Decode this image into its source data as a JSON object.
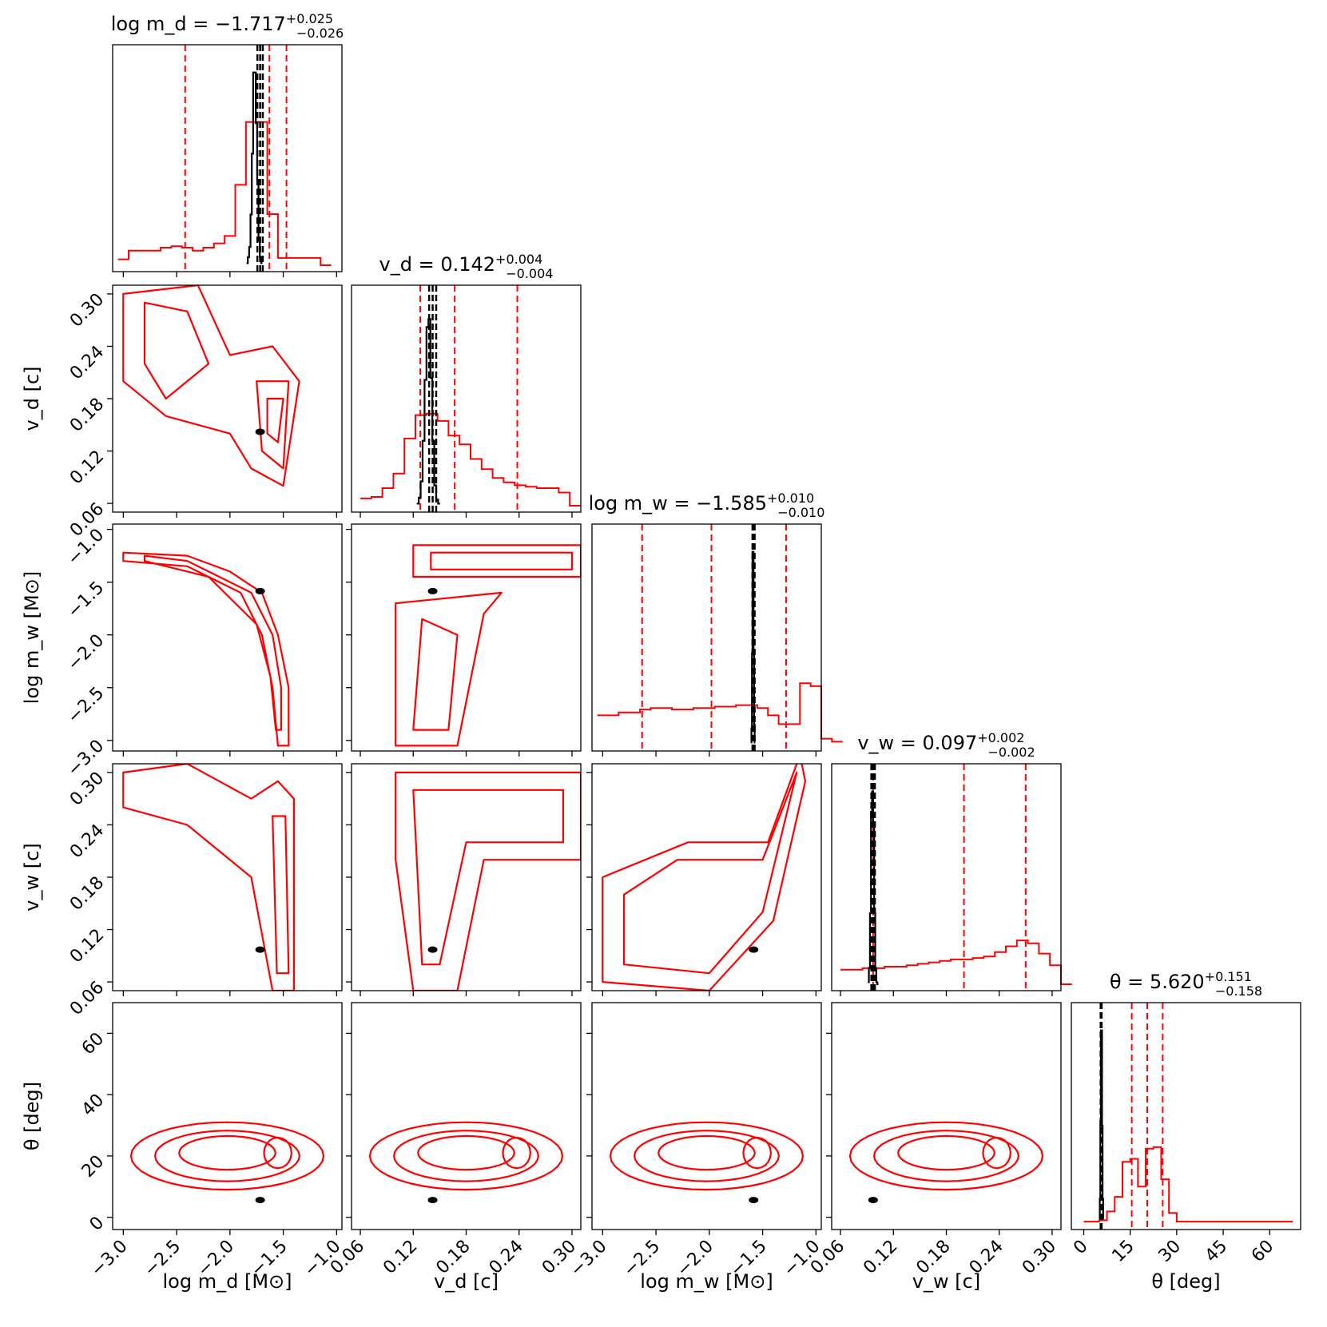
{
  "chart_data": {
    "type": "corner",
    "parameters": [
      {
        "key": "log_md",
        "label": "log m_d [M⊙]",
        "ticks": [
          "−3.0",
          "−2.5",
          "−2.0",
          "−1.5",
          "−1.0"
        ],
        "tick_values": [
          -3.0,
          -2.5,
          -2.0,
          -1.5,
          -1.0
        ],
        "range": [
          -3.1,
          -0.95
        ]
      },
      {
        "key": "vd",
        "label": "v_d [c]",
        "ticks": [
          "0.06",
          "0.12",
          "0.18",
          "0.24",
          "0.30"
        ],
        "tick_values": [
          0.06,
          0.12,
          0.18,
          0.24,
          0.3
        ],
        "range": [
          0.05,
          0.31
        ]
      },
      {
        "key": "log_mw",
        "label": "log m_w [M⊙]",
        "ticks": [
          "−3.0",
          "−2.5",
          "−2.0",
          "−1.5",
          "−1.0"
        ],
        "tick_values": [
          -3.0,
          -2.5,
          -2.0,
          -1.5,
          -1.0
        ],
        "range": [
          -3.1,
          -0.95
        ]
      },
      {
        "key": "vw",
        "label": "v_w [c]",
        "ticks": [
          "0.06",
          "0.12",
          "0.18",
          "0.24",
          "0.30"
        ],
        "tick_values": [
          0.06,
          0.12,
          0.18,
          0.24,
          0.3
        ],
        "range": [
          0.05,
          0.31
        ]
      },
      {
        "key": "theta",
        "label": "θ [deg]",
        "ticks": [
          "0",
          "20",
          "40",
          "60"
        ],
        "bottom_ticks": [
          "0",
          "15",
          "30",
          "45",
          "60"
        ],
        "tick_values": [
          0,
          20,
          40,
          60
        ],
        "bottom_tick_values": [
          0,
          15,
          30,
          45,
          60
        ],
        "range": [
          -4,
          70
        ]
      }
    ],
    "titles": [
      {
        "label": "log m_d",
        "value": "−1.717",
        "plus": "+0.025",
        "minus": "−0.026"
      },
      {
        "label": "v_d",
        "value": "0.142",
        "plus": "+0.004",
        "minus": "−0.004"
      },
      {
        "label": "log m_w",
        "value": "−1.585",
        "plus": "+0.010",
        "minus": "−0.010"
      },
      {
        "label": "v_w",
        "value": "0.097",
        "plus": "+0.002",
        "minus": "−0.002"
      },
      {
        "label": "θ",
        "value": "5.620",
        "plus": "+0.151",
        "minus": "−0.158"
      }
    ],
    "series": [
      {
        "color": "#ff0000",
        "role": "broad posterior"
      },
      {
        "color": "#000000",
        "role": "narrow posterior"
      }
    ],
    "red_quantiles": {
      "log_md": [
        -2.42,
        -1.63,
        -1.47
      ],
      "vd": [
        0.128,
        0.167,
        0.238
      ],
      "log_mw": [
        -2.63,
        -1.98,
        -1.28
      ],
      "vw": [
        0.097,
        0.2,
        0.27
      ],
      "theta": [
        15.5,
        20.5,
        25.5
      ]
    },
    "black_quantiles": {
      "log_md": [
        -1.743,
        -1.717,
        -1.692
      ],
      "vd": [
        0.138,
        0.142,
        0.146
      ],
      "log_mw": [
        -1.595,
        -1.585,
        -1.575
      ],
      "vw": [
        0.095,
        0.097,
        0.099
      ],
      "theta": [
        5.46,
        5.62,
        5.77
      ]
    },
    "red_hist": {
      "log_md": {
        "start": -3.05,
        "width": 0.1,
        "counts": [
          0.04,
          0.1,
          0.1,
          0.1,
          0.12,
          0.13,
          0.12,
          0.1,
          0.12,
          0.15,
          0.2,
          0.55,
          0.98,
          0.98,
          0.35,
          0.05,
          0.05,
          0.05,
          0.05,
          0.0
        ]
      },
      "vd": {
        "start": 0.06,
        "width": 0.0125,
        "counts": [
          0.05,
          0.06,
          0.12,
          0.22,
          0.46,
          0.62,
          0.63,
          0.58,
          0.48,
          0.42,
          0.32,
          0.25,
          0.19,
          0.16,
          0.14,
          0.13,
          0.12,
          0.12,
          0.09,
          0.0
        ]
      },
      "log_mw": {
        "start": -3.05,
        "width": 0.1,
        "counts": [
          0.2,
          0.2,
          0.22,
          0.22,
          0.24,
          0.25,
          0.25,
          0.24,
          0.24,
          0.25,
          0.25,
          0.26,
          0.26,
          0.27,
          0.27,
          0.25,
          0.2,
          0.14,
          0.14,
          0.42,
          0.4,
          0.04,
          0.02
        ]
      },
      "vw": {
        "start": 0.06,
        "width": 0.0125,
        "counts": [
          0.1,
          0.1,
          0.11,
          0.11,
          0.12,
          0.12,
          0.13,
          0.14,
          0.15,
          0.16,
          0.17,
          0.17,
          0.18,
          0.19,
          0.22,
          0.26,
          0.3,
          0.28,
          0.21,
          0.13,
          0.0
        ]
      },
      "theta": {
        "start": 0,
        "width": 2.5,
        "counts": [
          0.01,
          0.01,
          0.02,
          0.08,
          0.18,
          0.42,
          0.44,
          0.25,
          0.51,
          0.52,
          0.3,
          0.07,
          0.01,
          0.01,
          0.01,
          0.01,
          0.01,
          0.01,
          0.01,
          0.01,
          0.01,
          0.01,
          0.01,
          0.01,
          0.01,
          0.01,
          0.01
        ]
      }
    },
    "black_hist": {
      "log_md": {
        "start": -1.845,
        "width": 0.0125,
        "counts": [
          0.01,
          0.04,
          0.09,
          0.25,
          0.55,
          0.95,
          0.95,
          0.7,
          0.42,
          0.12,
          0.04,
          0.01
        ]
      },
      "vd": {
        "start": 0.124,
        "width": 0.0022,
        "counts": [
          0.01,
          0.04,
          0.12,
          0.32,
          0.62,
          0.88,
          0.92,
          0.63,
          0.32,
          0.1,
          0.03,
          0.01
        ]
      },
      "log_mw": {
        "start": -1.61,
        "width": 0.005,
        "counts": [
          0.01,
          0.08,
          0.45,
          0.95,
          0.95,
          0.45,
          0.1,
          0.01
        ]
      },
      "vw": {
        "start": 0.091,
        "width": 0.0012,
        "counts": [
          0.01,
          0.08,
          0.35,
          0.85,
          0.95,
          0.8,
          0.35,
          0.08,
          0.01,
          0.0
        ]
      },
      "theta": {
        "start": 5.0,
        "width": 0.18,
        "counts": [
          0.02,
          0.12,
          0.5,
          0.95,
          0.95,
          0.48,
          0.12,
          0.02
        ]
      }
    },
    "black_blob": {
      "log_md": -1.717,
      "vd": 0.142,
      "log_mw": -1.585,
      "vw": 0.097,
      "theta": 5.62
    }
  }
}
